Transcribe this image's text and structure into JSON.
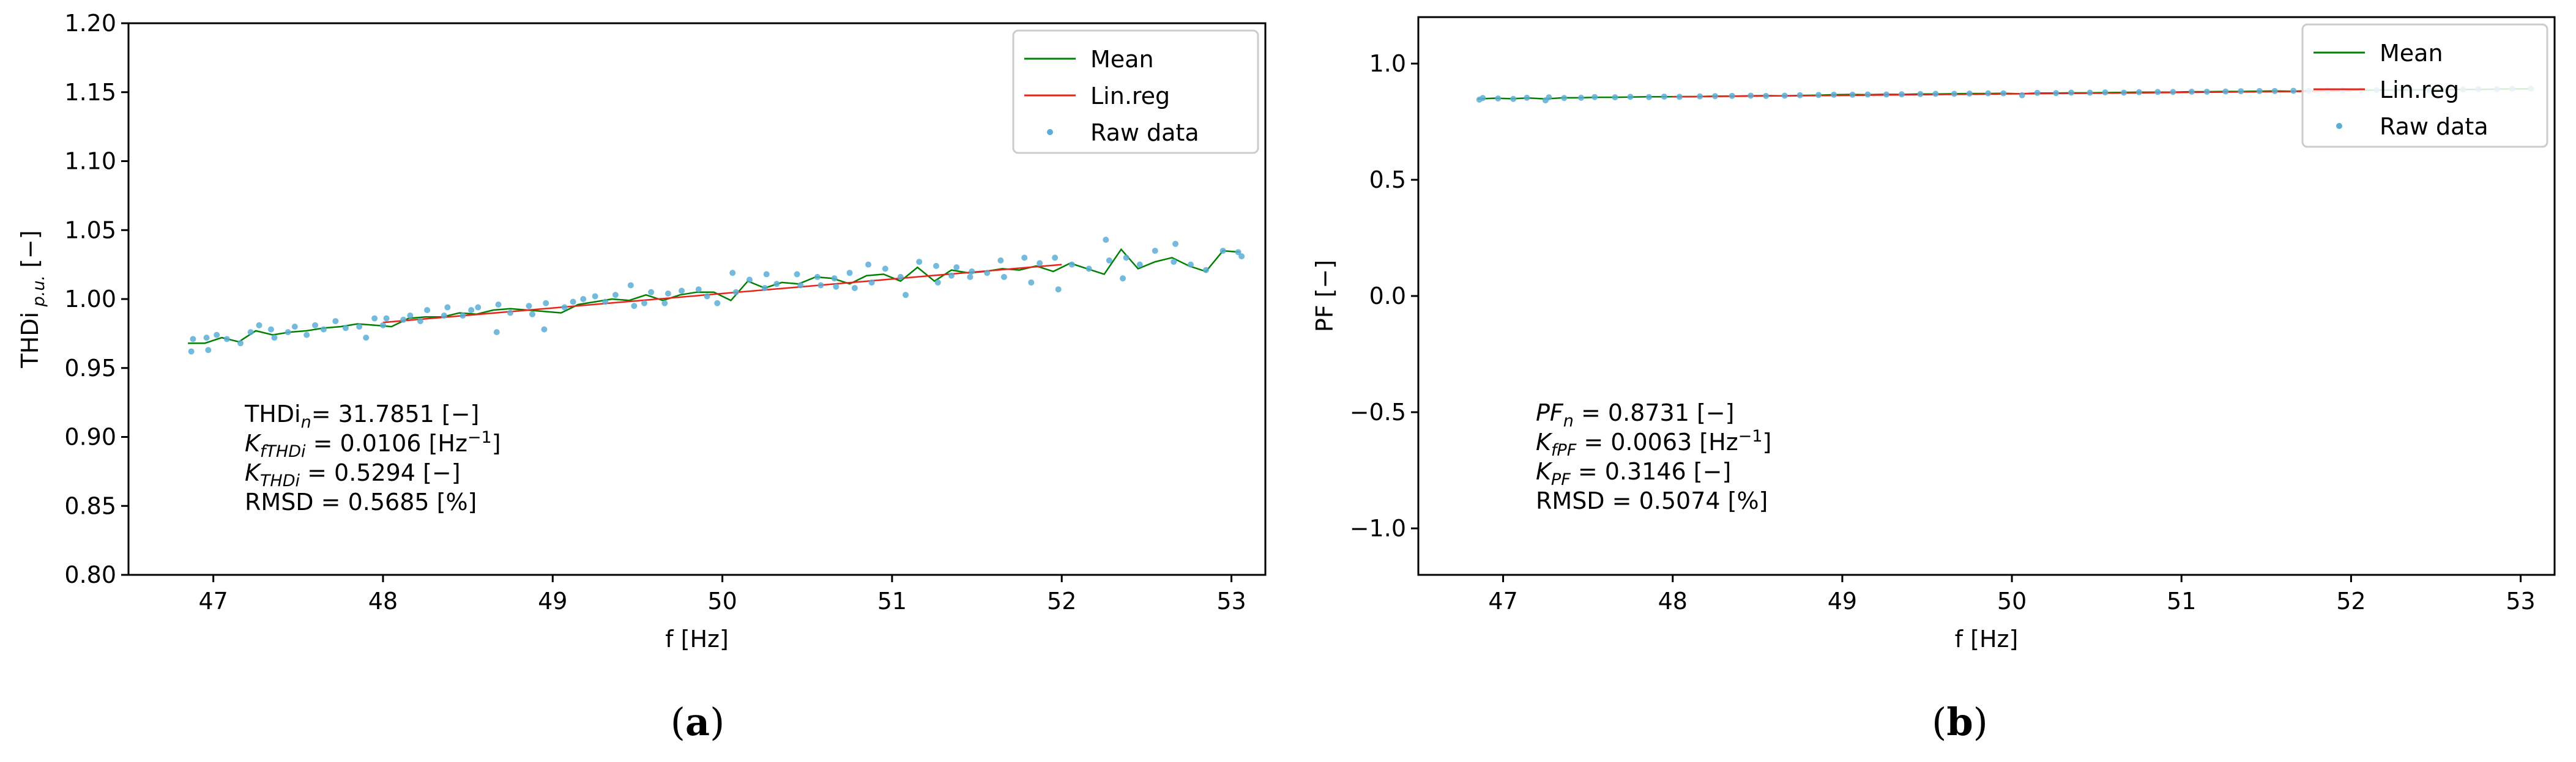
{
  "chart_data": [
    {
      "type": "line",
      "panel_label": "(a)",
      "title": "",
      "xlabel": "f [Hz]",
      "ylabel": "THDi p.u. [−]",
      "ylabel_parts": {
        "main": "THDi",
        "sub": "p.u.",
        "unit": " [−]"
      },
      "xlim": [
        46.5,
        53.2
      ],
      "ylim": [
        0.8,
        1.2
      ],
      "xticks": [
        47,
        48,
        49,
        50,
        51,
        52,
        53
      ],
      "yticks": [
        0.8,
        0.85,
        0.9,
        0.95,
        1.0,
        1.05,
        1.1,
        1.15,
        1.2
      ],
      "ytick_labels": [
        "0.80",
        "0.85",
        "0.90",
        "0.95",
        "1.00",
        "1.05",
        "1.10",
        "1.15",
        "1.20"
      ],
      "legend": {
        "position": "top-right",
        "entries": [
          "Mean",
          "Lin.reg",
          "Raw data"
        ]
      },
      "series": [
        {
          "name": "Mean",
          "color": "#008000",
          "x": [
            46.85,
            46.95,
            47.05,
            47.15,
            47.25,
            47.35,
            47.45,
            47.55,
            47.65,
            47.75,
            47.85,
            47.95,
            48.05,
            48.15,
            48.25,
            48.35,
            48.45,
            48.55,
            48.65,
            48.75,
            48.85,
            48.95,
            49.05,
            49.15,
            49.25,
            49.35,
            49.45,
            49.55,
            49.65,
            49.75,
            49.85,
            49.95,
            50.05,
            50.15,
            50.25,
            50.35,
            50.45,
            50.55,
            50.65,
            50.75,
            50.85,
            50.95,
            51.05,
            51.15,
            51.25,
            51.35,
            51.45,
            51.55,
            51.65,
            51.75,
            51.85,
            51.95,
            52.05,
            52.15,
            52.25,
            52.35,
            52.45,
            52.55,
            52.65,
            52.75,
            52.85,
            52.95,
            53.05
          ],
          "y": [
            0.968,
            0.968,
            0.972,
            0.969,
            0.977,
            0.974,
            0.976,
            0.977,
            0.979,
            0.98,
            0.982,
            0.981,
            0.98,
            0.986,
            0.987,
            0.987,
            0.99,
            0.989,
            0.992,
            0.993,
            0.992,
            0.991,
            0.99,
            0.996,
            0.998,
            1.0,
            0.999,
            1.003,
            0.999,
            1.003,
            1.005,
            1.005,
            0.999,
            1.013,
            1.008,
            1.012,
            1.011,
            1.016,
            1.015,
            1.011,
            1.017,
            1.018,
            1.013,
            1.023,
            1.013,
            1.021,
            1.019,
            1.02,
            1.022,
            1.021,
            1.024,
            1.02,
            1.026,
            1.022,
            1.018,
            1.036,
            1.022,
            1.027,
            1.03,
            1.024,
            1.02,
            1.035,
            1.034
          ]
        },
        {
          "name": "Lin.reg",
          "color": "#e8231a",
          "x": [
            48.0,
            52.0
          ],
          "y": [
            0.983,
            1.025
          ]
        },
        {
          "name": "Raw data",
          "color": "#5aaed6",
          "x": [
            46.87,
            46.88,
            46.96,
            46.97,
            47.02,
            47.08,
            47.16,
            47.22,
            47.27,
            47.34,
            47.36,
            47.44,
            47.48,
            47.55,
            47.6,
            47.65,
            47.72,
            47.78,
            47.86,
            47.9,
            47.95,
            48.0,
            48.02,
            48.12,
            48.16,
            48.22,
            48.26,
            48.36,
            48.38,
            48.47,
            48.52,
            48.56,
            48.67,
            48.68,
            48.75,
            48.86,
            48.88,
            48.95,
            48.96,
            49.07,
            49.12,
            49.18,
            49.25,
            49.31,
            49.37,
            49.46,
            49.48,
            49.54,
            49.58,
            49.66,
            49.68,
            49.76,
            49.86,
            49.91,
            49.97,
            50.06,
            50.08,
            50.16,
            50.25,
            50.26,
            50.32,
            50.44,
            50.46,
            50.56,
            50.58,
            50.66,
            50.67,
            50.75,
            50.78,
            50.86,
            50.88,
            50.96,
            51.05,
            51.08,
            51.16,
            51.26,
            51.27,
            51.35,
            51.38,
            51.46,
            51.47,
            51.56,
            51.64,
            51.66,
            51.78,
            51.82,
            51.87,
            51.96,
            51.98,
            52.06,
            52.16,
            52.26,
            52.28,
            52.36,
            52.38,
            52.46,
            52.55,
            52.66,
            52.67,
            52.76,
            52.85,
            52.95,
            53.04,
            53.06
          ],
          "y": [
            0.962,
            0.971,
            0.972,
            0.963,
            0.974,
            0.971,
            0.968,
            0.976,
            0.981,
            0.978,
            0.972,
            0.976,
            0.98,
            0.974,
            0.981,
            0.978,
            0.984,
            0.979,
            0.98,
            0.972,
            0.986,
            0.981,
            0.986,
            0.985,
            0.988,
            0.984,
            0.992,
            0.988,
            0.994,
            0.988,
            0.992,
            0.994,
            0.976,
            0.996,
            0.99,
            0.995,
            0.989,
            0.978,
            0.997,
            0.994,
            0.998,
            1.0,
            1.002,
            0.998,
            1.003,
            1.01,
            0.995,
            0.997,
            1.005,
            0.997,
            1.004,
            1.006,
            1.007,
            1.002,
            0.997,
            1.019,
            1.005,
            1.014,
            1.008,
            1.018,
            1.011,
            1.018,
            1.01,
            1.016,
            1.01,
            1.015,
            1.009,
            1.019,
            1.008,
            1.025,
            1.012,
            1.022,
            1.016,
            1.003,
            1.027,
            1.024,
            1.012,
            1.017,
            1.023,
            1.016,
            1.02,
            1.019,
            1.028,
            1.016,
            1.03,
            1.012,
            1.026,
            1.03,
            1.007,
            1.025,
            1.022,
            1.043,
            1.028,
            1.015,
            1.03,
            1.025,
            1.035,
            1.027,
            1.04,
            1.025,
            1.021,
            1.035,
            1.034,
            1.031
          ]
        }
      ],
      "annotations": [
        {
          "label": "THDi",
          "sub": "n",
          "sep": "= ",
          "value": "31.7851",
          "unit": " [−]"
        },
        {
          "label": "K",
          "sub": "fTHDi",
          "sep": " = ",
          "value": "0.0106",
          "unit": " [Hz",
          "sup": "−1",
          "unit_tail": "]"
        },
        {
          "label": "K",
          "sub": "THDi",
          "sep": " = ",
          "value": "0.5294",
          "unit": " [−]"
        },
        {
          "label": "RMSD",
          "sub": "",
          "sep": " = ",
          "value": "0.5685",
          "unit": " [%]"
        }
      ]
    },
    {
      "type": "line",
      "panel_label": "(b)",
      "title": "",
      "xlabel": "f [Hz]",
      "ylabel": "PF [−]",
      "xlim": [
        46.5,
        53.2
      ],
      "ylim": [
        -1.2,
        1.2
      ],
      "xticks": [
        47,
        48,
        49,
        50,
        51,
        52,
        53
      ],
      "yticks": [
        -1.0,
        -0.5,
        0.0,
        0.5,
        1.0
      ],
      "ytick_labels": [
        "−1.0",
        "−0.5",
        "0.0",
        "0.5",
        "1.0"
      ],
      "legend": {
        "position": "top-right",
        "entries": [
          "Mean",
          "Lin.reg",
          "Raw data"
        ]
      },
      "series": [
        {
          "name": "Mean",
          "color": "#008000",
          "x": [
            46.85,
            46.95,
            47.05,
            47.15,
            47.25,
            47.35,
            47.45,
            47.55,
            47.65,
            47.75,
            47.85,
            47.95,
            48.05,
            48.15,
            48.25,
            48.35,
            48.45,
            48.55,
            48.65,
            48.75,
            48.85,
            48.95,
            49.05,
            49.15,
            49.25,
            49.35,
            49.45,
            49.55,
            49.65,
            49.75,
            49.85,
            49.95,
            50.05,
            50.15,
            50.25,
            50.35,
            50.45,
            50.55,
            50.65,
            50.75,
            50.85,
            50.95,
            51.05,
            51.15,
            51.25,
            51.35,
            51.45,
            51.55,
            51.65,
            51.75,
            51.85,
            51.95,
            52.05,
            52.15,
            52.25,
            52.35,
            52.45,
            52.55,
            52.65,
            52.75,
            52.85,
            52.95,
            53.05
          ],
          "y": [
            0.848,
            0.851,
            0.849,
            0.852,
            0.848,
            0.853,
            0.853,
            0.855,
            0.855,
            0.856,
            0.857,
            0.857,
            0.858,
            0.858,
            0.86,
            0.86,
            0.861,
            0.862,
            0.861,
            0.863,
            0.864,
            0.866,
            0.867,
            0.866,
            0.868,
            0.867,
            0.869,
            0.869,
            0.87,
            0.871,
            0.871,
            0.872,
            0.87,
            0.873,
            0.873,
            0.874,
            0.874,
            0.875,
            0.876,
            0.877,
            0.877,
            0.877,
            0.879,
            0.879,
            0.88,
            0.88,
            0.881,
            0.882,
            0.881,
            0.883,
            0.884,
            0.884,
            0.885,
            0.886,
            0.886,
            0.887,
            0.887,
            0.888,
            0.889,
            0.889,
            0.89,
            0.891,
            0.891
          ]
        },
        {
          "name": "Lin.reg",
          "color": "#e8231a",
          "x": [
            48.0,
            52.0
          ],
          "y": [
            0.857,
            0.882
          ]
        },
        {
          "name": "Raw data",
          "color": "#5aaed6",
          "x": [
            46.86,
            46.88,
            46.97,
            47.06,
            47.14,
            47.25,
            47.27,
            47.36,
            47.46,
            47.54,
            47.66,
            47.75,
            47.86,
            47.95,
            48.04,
            48.16,
            48.25,
            48.35,
            48.46,
            48.55,
            48.66,
            48.75,
            48.86,
            48.95,
            49.06,
            49.15,
            49.26,
            49.35,
            49.46,
            49.55,
            49.66,
            49.75,
            49.86,
            49.95,
            50.06,
            50.15,
            50.26,
            50.35,
            50.46,
            50.55,
            50.66,
            50.75,
            50.86,
            50.95,
            51.06,
            51.15,
            51.26,
            51.35,
            51.46,
            51.55,
            51.66,
            51.75,
            51.86,
            51.95,
            52.06,
            52.15,
            52.26,
            52.35,
            52.46,
            52.55,
            52.66,
            52.75,
            52.86,
            52.95,
            53.06
          ],
          "y": [
            0.845,
            0.852,
            0.85,
            0.848,
            0.853,
            0.842,
            0.855,
            0.852,
            0.853,
            0.856,
            0.855,
            0.857,
            0.856,
            0.858,
            0.857,
            0.859,
            0.86,
            0.861,
            0.862,
            0.861,
            0.862,
            0.864,
            0.865,
            0.866,
            0.866,
            0.867,
            0.867,
            0.868,
            0.869,
            0.87,
            0.87,
            0.871,
            0.872,
            0.872,
            0.864,
            0.874,
            0.873,
            0.875,
            0.875,
            0.876,
            0.875,
            0.877,
            0.878,
            0.878,
            0.879,
            0.879,
            0.88,
            0.881,
            0.882,
            0.882,
            0.883,
            0.883,
            0.884,
            0.885,
            0.885,
            0.886,
            0.887,
            0.887,
            0.888,
            0.888,
            0.889,
            0.89,
            0.89,
            0.891,
            0.892
          ]
        }
      ],
      "annotations": [
        {
          "label": "PF",
          "sub": "n",
          "sep": " = ",
          "value": "0.8731",
          "unit": " [−]",
          "italic": true
        },
        {
          "label": "K",
          "sub": "fPF",
          "sep": " = ",
          "value": "0.0063",
          "unit": " [Hz",
          "sup": "−1",
          "unit_tail": "]"
        },
        {
          "label": "K",
          "sub": "PF",
          "sep": " = ",
          "value": "0.3146",
          "unit": " [−]"
        },
        {
          "label": "RMSD",
          "sub": "",
          "sep": " = ",
          "value": "0.5074",
          "unit": " [%]"
        }
      ]
    }
  ]
}
